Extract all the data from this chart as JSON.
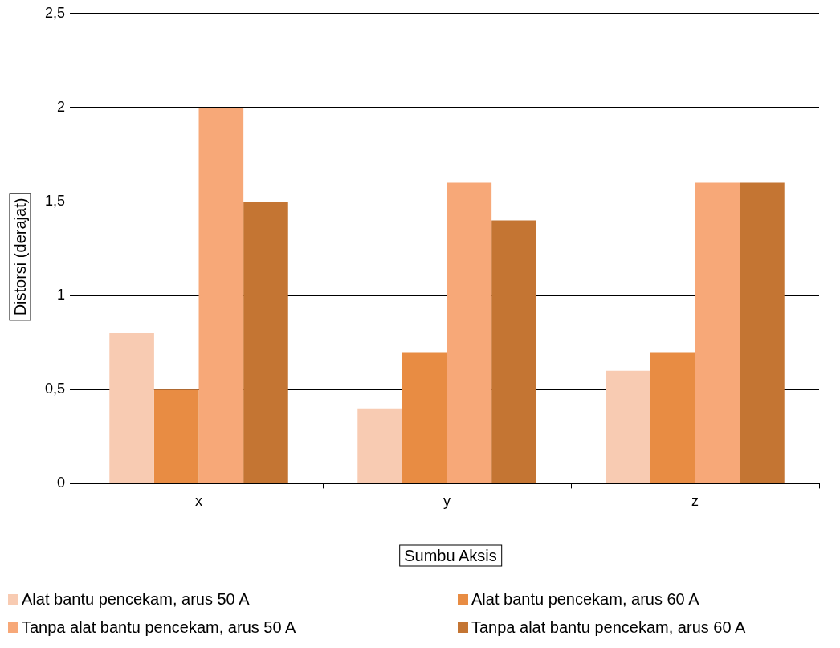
{
  "chart_data": {
    "type": "bar",
    "xlabel": "Sumbu Aksis",
    "ylabel": "Distorsi (derajat)",
    "categories": [
      "x",
      "y",
      "z"
    ],
    "series": [
      {
        "name": "Alat bantu pencekam, arus 50 A",
        "color": "#f8cbb2",
        "values": [
          0.8,
          0.4,
          0.6
        ]
      },
      {
        "name": "Alat bantu pencekam, arus 60 A",
        "color": "#e88c43",
        "values": [
          0.5,
          0.7,
          0.7
        ]
      },
      {
        "name": "Tanpa alat bantu pencekam, arus 50 A",
        "color": "#f7a878",
        "values": [
          2,
          1.6,
          1.6
        ]
      },
      {
        "name": "Tanpa alat bantu pencekam, arus 60 A",
        "color": "#c47533",
        "values": [
          1.5,
          1.4,
          1.6
        ]
      }
    ],
    "ylim": [
      0,
      2.5
    ],
    "yticks": [
      0,
      {
        "value": 0.5,
        "label": "0,5"
      },
      1,
      {
        "value": 1.5,
        "label": "1,5"
      },
      2,
      {
        "value": 2.5,
        "label": "2,5"
      }
    ],
    "grid": "y",
    "legend": "bottom"
  }
}
